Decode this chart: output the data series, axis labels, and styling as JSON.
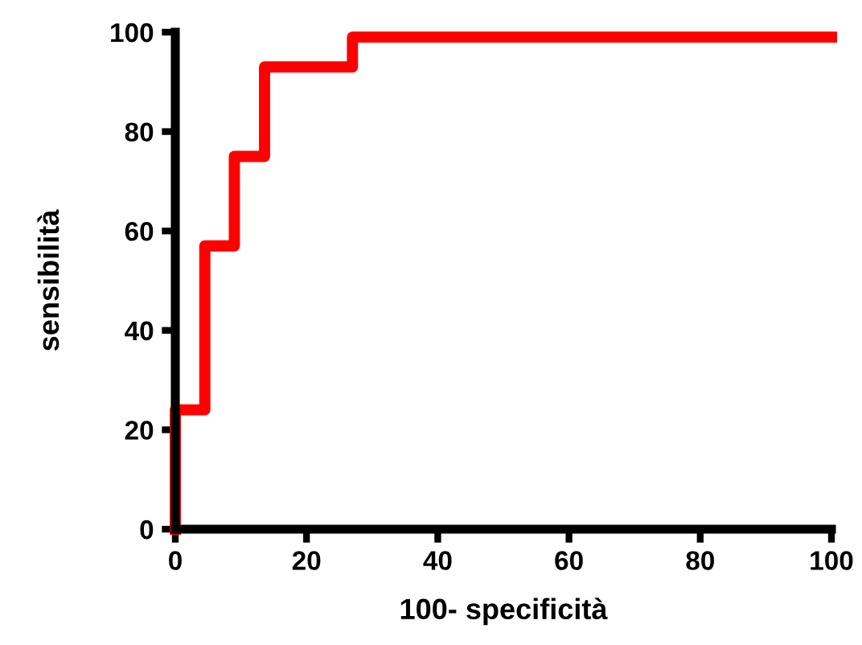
{
  "chart_data": {
    "type": "step",
    "xlabel": "100- specificità",
    "ylabel": "sensibilità",
    "x": [
      0,
      0,
      4.5,
      4.5,
      9,
      9,
      13.6,
      13.6,
      27,
      27,
      100
    ],
    "series": [
      {
        "color": "#ff0000",
        "values": [
          0,
          24,
          24,
          57,
          57,
          75,
          75,
          93,
          93,
          99,
          99
        ]
      }
    ],
    "xlim": [
      0,
      100
    ],
    "ylim": [
      0,
      100
    ],
    "xticks": [
      0,
      20,
      40,
      60,
      80,
      100
    ],
    "yticks": [
      0,
      20,
      40,
      60,
      80,
      100
    ],
    "grid": false,
    "legend": false,
    "marker": "none",
    "line_style": "solid"
  }
}
